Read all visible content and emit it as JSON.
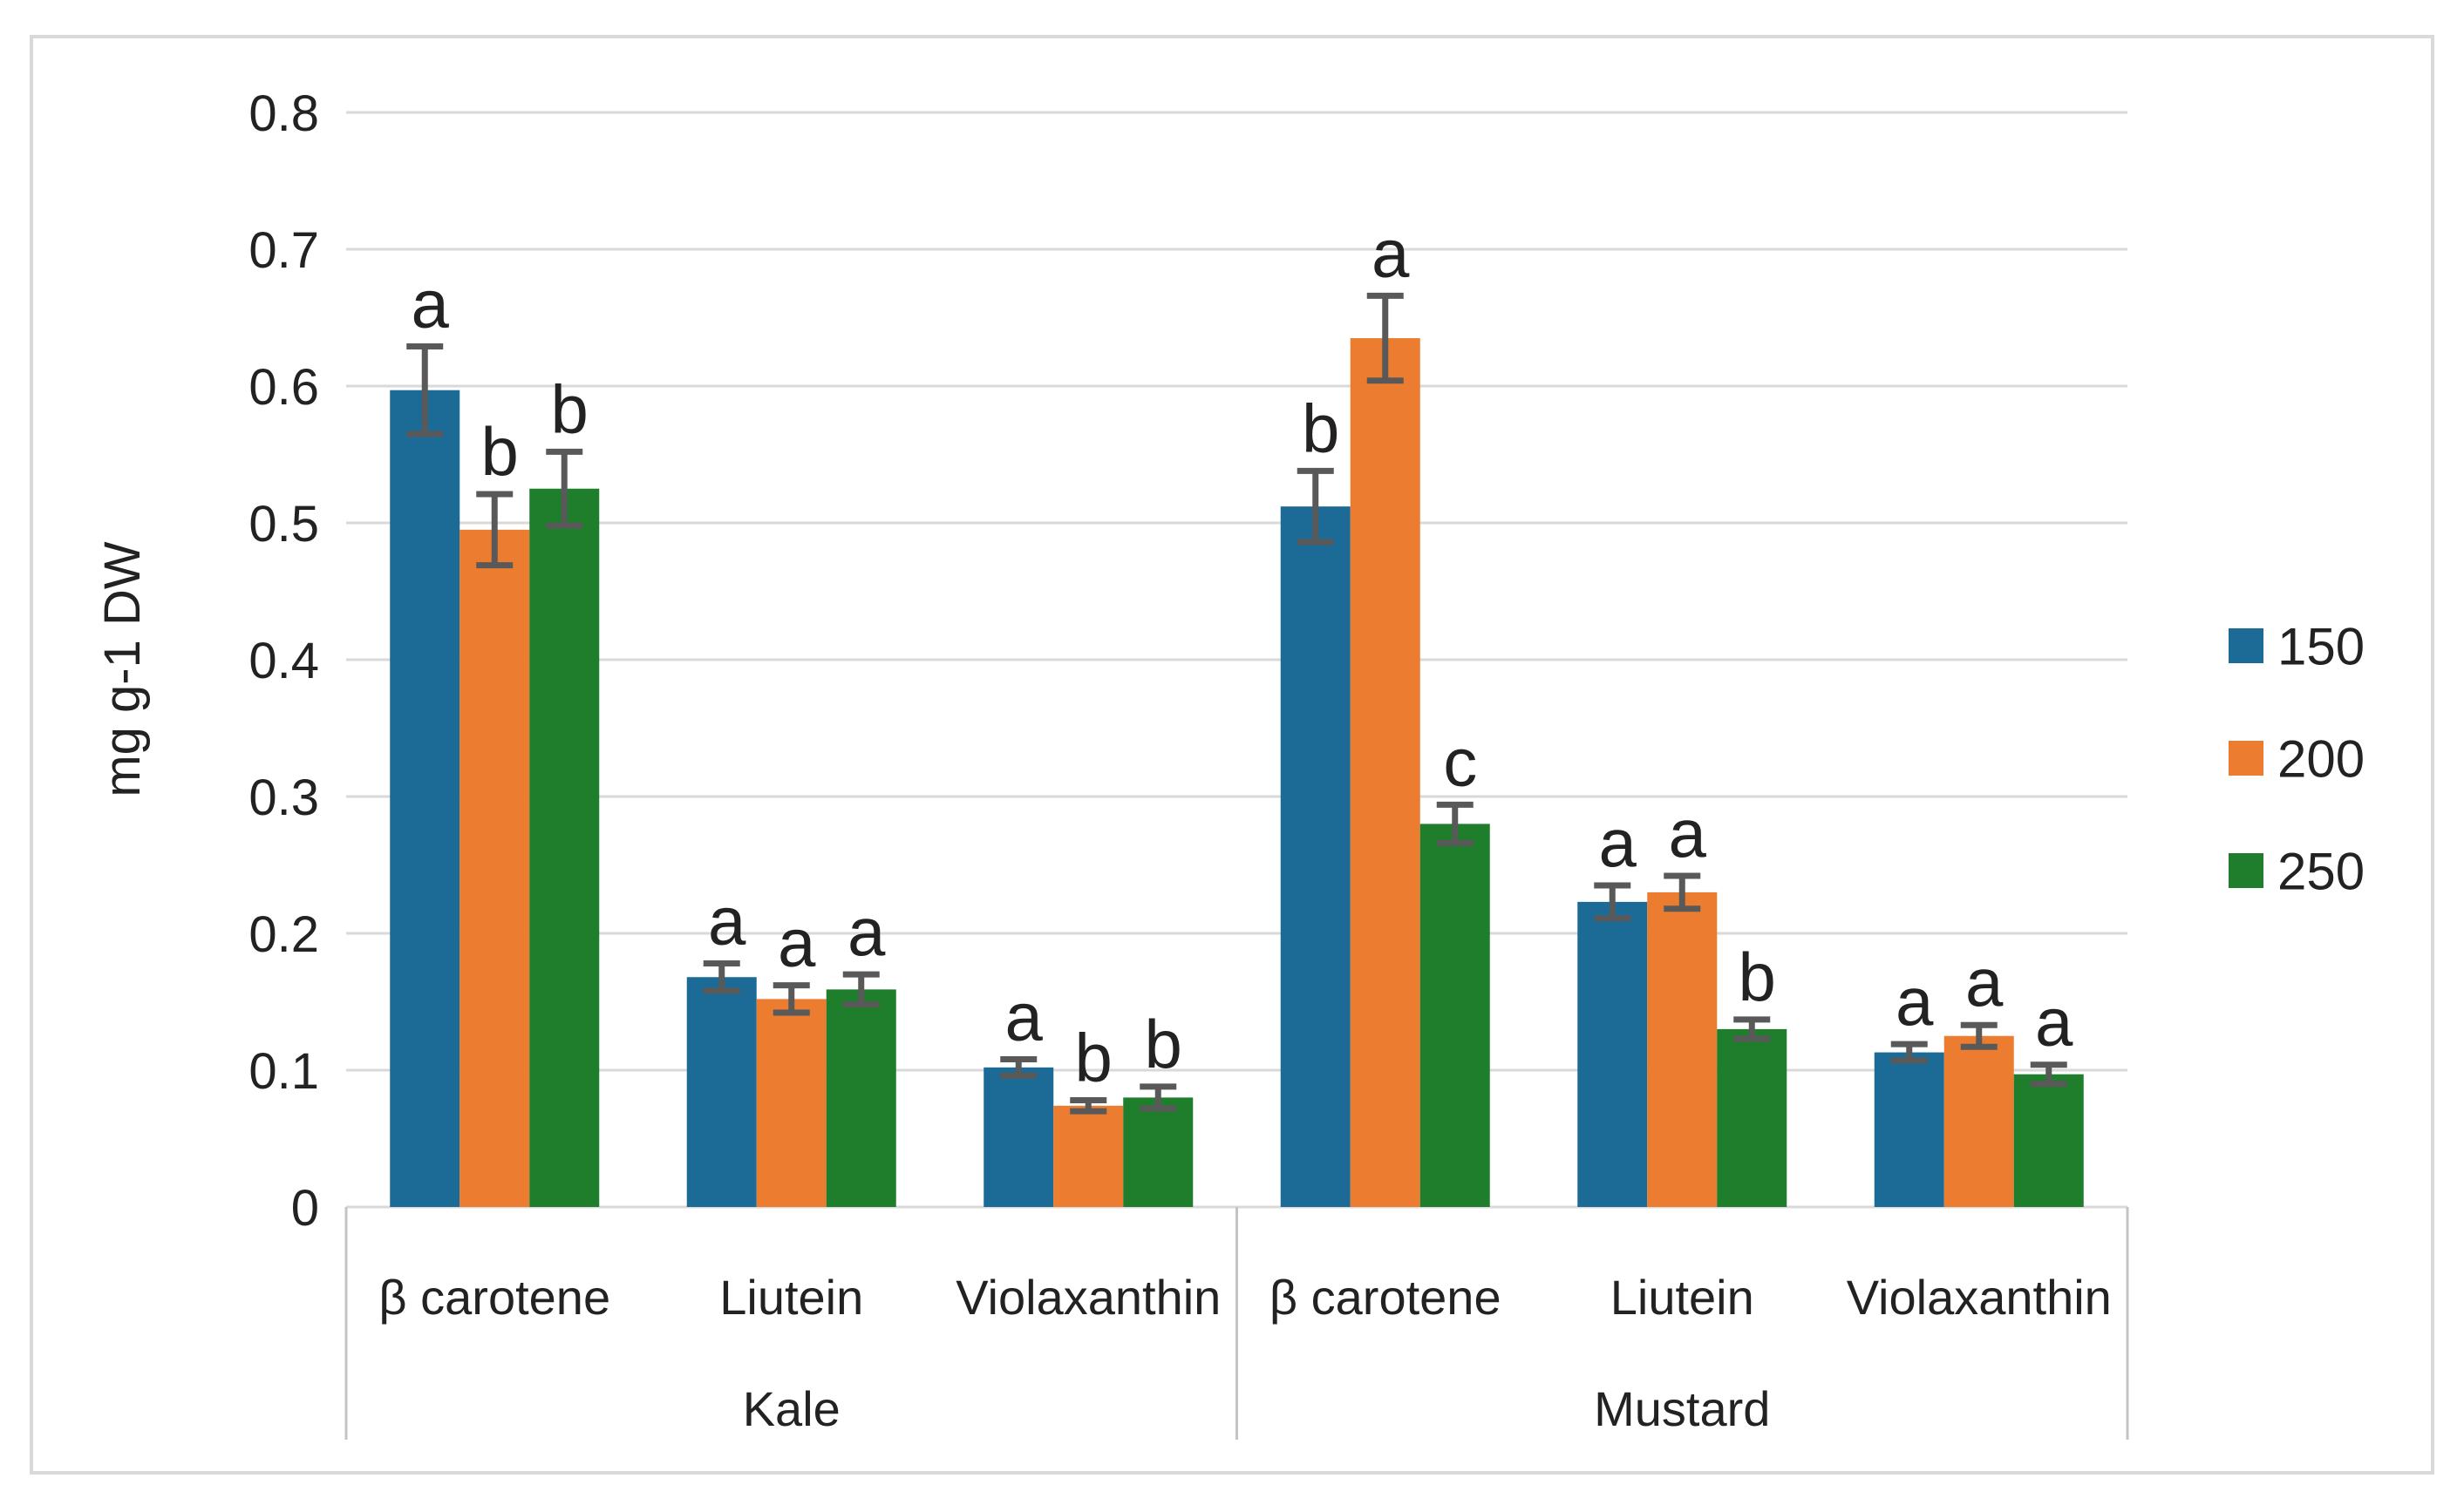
{
  "figure": {
    "background_color": "#ffffff",
    "frame_color": "#d9d9d9",
    "gridline_color": "#d9d9d9",
    "band_line_color": "#c4c4c4",
    "error_bar_color": "#595959",
    "text_color": "#222222"
  },
  "chart_data": {
    "type": "bar",
    "title": "",
    "xlabel": "",
    "ylabel": "mg g-1 DW",
    "ylim": [
      0,
      0.8
    ],
    "ytick_labels": [
      "0",
      "0.1",
      "0.2",
      "0.3",
      "0.4",
      "0.5",
      "0.6",
      "0.7",
      "0.8"
    ],
    "ytick_values": [
      0,
      0.1,
      0.2,
      0.3,
      0.4,
      0.5,
      0.6,
      0.7,
      0.8
    ],
    "grid": true,
    "legend_position": "right",
    "series": [
      {
        "name": "150",
        "color": "#1c6b96"
      },
      {
        "name": "200",
        "color": "#ec7c30"
      },
      {
        "name": "250",
        "color": "#1e7e2b"
      }
    ],
    "groups": [
      {
        "name": "Kale",
        "categories": [
          {
            "label": "β carotene",
            "bars": [
              {
                "series": "150",
                "value": 0.597,
                "error": 0.032,
                "letter": "a"
              },
              {
                "series": "200",
                "value": 0.495,
                "error": 0.026,
                "letter": "b"
              },
              {
                "series": "250",
                "value": 0.525,
                "error": 0.027,
                "letter": "b"
              }
            ]
          },
          {
            "label": "Liutein",
            "bars": [
              {
                "series": "150",
                "value": 0.168,
                "error": 0.01,
                "letter": "a"
              },
              {
                "series": "200",
                "value": 0.152,
                "error": 0.01,
                "letter": "a"
              },
              {
                "series": "250",
                "value": 0.159,
                "error": 0.011,
                "letter": "a"
              }
            ]
          },
          {
            "label": "Violaxanthin",
            "bars": [
              {
                "series": "150",
                "value": 0.102,
                "error": 0.006,
                "letter": "a"
              },
              {
                "series": "200",
                "value": 0.074,
                "error": 0.004,
                "letter": "b"
              },
              {
                "series": "250",
                "value": 0.08,
                "error": 0.008,
                "letter": "b"
              }
            ]
          }
        ]
      },
      {
        "name": "Mustard",
        "categories": [
          {
            "label": "β carotene",
            "bars": [
              {
                "series": "150",
                "value": 0.512,
                "error": 0.026,
                "letter": "b"
              },
              {
                "series": "200",
                "value": 0.635,
                "error": 0.031,
                "letter": "a"
              },
              {
                "series": "250",
                "value": 0.28,
                "error": 0.014,
                "letter": "c"
              }
            ]
          },
          {
            "label": "Liutein",
            "bars": [
              {
                "series": "150",
                "value": 0.223,
                "error": 0.012,
                "letter": "a"
              },
              {
                "series": "200",
                "value": 0.23,
                "error": 0.012,
                "letter": "a"
              },
              {
                "series": "250",
                "value": 0.13,
                "error": 0.007,
                "letter": "b"
              }
            ]
          },
          {
            "label": "Violaxanthin",
            "bars": [
              {
                "series": "150",
                "value": 0.113,
                "error": 0.006,
                "letter": "a"
              },
              {
                "series": "200",
                "value": 0.125,
                "error": 0.008,
                "letter": "a"
              },
              {
                "series": "250",
                "value": 0.097,
                "error": 0.007,
                "letter": "a"
              }
            ]
          }
        ]
      }
    ]
  }
}
